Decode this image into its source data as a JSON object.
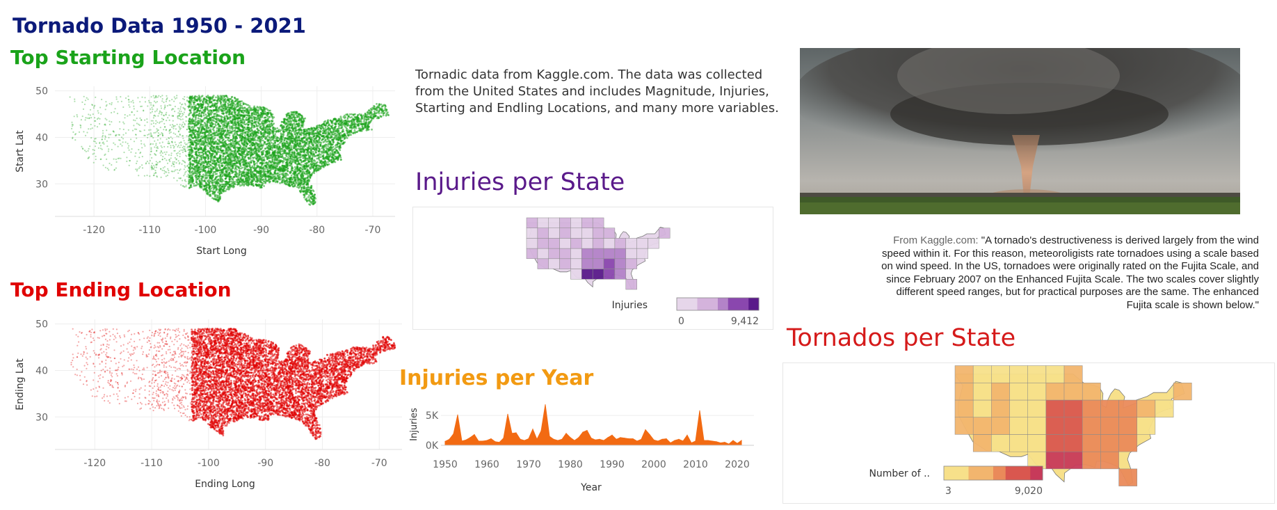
{
  "dashboard": {
    "title": "Tornado Data 1950 - 2021",
    "description": "Tornadic data from Kaggle.com. The data was collected from the United States and includes Magnitude, Injuries, Starting and Endling Locations, and many more variables.",
    "quote_source": "From Kaggle.com:",
    "quote_text": "\"A tornado's destructiveness is derived largely from the wind speed within it. For this reason, meteoroligists rate tornadoes using a scale based on wind speed. In the US, tornadoes were originally rated on the Fujita Scale, and since February 2007 on the Enhanced Fujita Scale. The two scales cover slightly different speed ranges, but for practical purposes are the same. The enhanced Fujita scale is shown below.\""
  },
  "colors": {
    "title": "#0b1a7a",
    "start": "#1aa31a",
    "end": "#e00000",
    "injuries_state": "#5a1a8a",
    "injuries_year": "#f29a12",
    "tornados_state": "#d51a1a"
  },
  "chart_data": [
    {
      "type": "scatter",
      "title": "Top Starting Location",
      "xlabel": "Start Long",
      "ylabel": "Start Lat",
      "xlim": [
        -127,
        -66
      ],
      "ylim": [
        23,
        51
      ],
      "xticks": [
        -120,
        -110,
        -100,
        -90,
        -80,
        -70
      ],
      "yticks": [
        30,
        40,
        50
      ],
      "color": "#1aa31a"
    },
    {
      "type": "scatter",
      "title": "Top Ending Location",
      "xlabel": "Ending Long",
      "ylabel": "Ending Lat",
      "xlim": [
        -127,
        -66
      ],
      "ylim": [
        23,
        51
      ],
      "xticks": [
        -120,
        -110,
        -100,
        -90,
        -80,
        -70
      ],
      "yticks": [
        30,
        40,
        50
      ],
      "color": "#e00000"
    },
    {
      "type": "heatmap",
      "title": "Injuries per State",
      "legend_title": "Injuries",
      "legend_min": "0",
      "legend_max": "9,412",
      "color_scale": [
        "#e6d6ea",
        "#d4b3dc",
        "#b383c8",
        "#8a47ae",
        "#5a1a8a"
      ]
    },
    {
      "type": "area",
      "title": "Injuries per Year",
      "xlabel": "Year",
      "ylabel": "Injuries",
      "xticks": [
        1950,
        1960,
        1970,
        1980,
        1990,
        2000,
        2010,
        2020
      ],
      "ytick_labels": [
        "5K",
        "0K"
      ],
      "ytick_values": [
        5000,
        0
      ],
      "xlim": [
        1949,
        2021
      ],
      "ylim": [
        0,
        7000
      ],
      "color": "#f26a12",
      "x": [
        1950,
        1951,
        1952,
        1953,
        1954,
        1955,
        1956,
        1957,
        1958,
        1959,
        1960,
        1961,
        1962,
        1963,
        1964,
        1965,
        1966,
        1967,
        1968,
        1969,
        1970,
        1971,
        1972,
        1973,
        1974,
        1975,
        1976,
        1977,
        1978,
        1979,
        1980,
        1981,
        1982,
        1983,
        1984,
        1985,
        1986,
        1987,
        1988,
        1989,
        1990,
        1991,
        1992,
        1993,
        1994,
        1995,
        1996,
        1997,
        1998,
        1999,
        2000,
        2001,
        2002,
        2003,
        2004,
        2005,
        2006,
        2007,
        2008,
        2009,
        2010,
        2011,
        2012,
        2013,
        2014,
        2015,
        2016,
        2017,
        2018,
        2019,
        2020,
        2021
      ],
      "values": [
        659,
        1000,
        1900,
        5100,
        700,
        900,
        1300,
        1800,
        700,
        700,
        800,
        1100,
        600,
        500,
        1200,
        5200,
        2000,
        2100,
        1000,
        800,
        1100,
        2700,
        1000,
        2400,
        6800,
        1500,
        1000,
        800,
        1000,
        2000,
        1300,
        800,
        1300,
        2200,
        2500,
        1200,
        900,
        1000,
        800,
        1300,
        1700,
        1000,
        1300,
        1200,
        1100,
        1100,
        700,
        1000,
        2600,
        1800,
        900,
        700,
        1000,
        1100,
        400,
        800,
        1000,
        700,
        1700,
        400,
        700,
        5800,
        800,
        800,
        700,
        600,
        400,
        500,
        200,
        800,
        300,
        800
      ]
    },
    {
      "type": "heatmap",
      "title": "Tornados per State",
      "legend_title": "Number of ..",
      "legend_min": "3",
      "legend_max": "9,020",
      "color_scale": [
        "#f7e08a",
        "#f2b56e",
        "#ea8a5a",
        "#d9574f",
        "#c73a5a"
      ]
    }
  ]
}
